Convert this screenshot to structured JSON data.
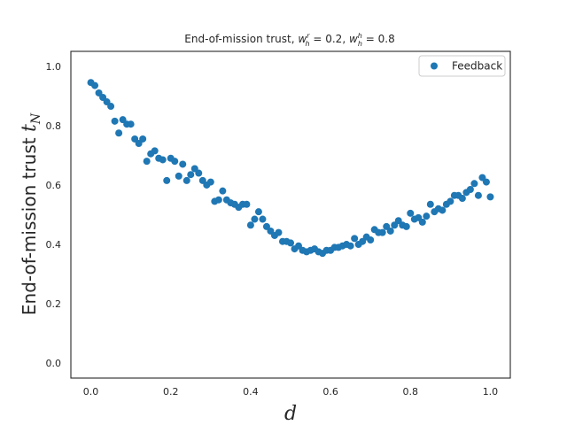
{
  "chart_data": {
    "type": "scatter",
    "title": "End-of-mission trust, w_h^r = 0.2, w_h^h = 0.8",
    "title_parts": {
      "prefix": "End-of-mission trust, ",
      "w1_base": "w",
      "w1_sup": "r",
      "w1_sub": "h",
      "w1_value": " = 0.2, ",
      "w2_base": "w",
      "w2_sup": "h",
      "w2_sub": "h",
      "w2_value": " = 0.8"
    },
    "xlabel": "d",
    "ylabel": "End-of-mission trust t_N",
    "ylabel_parts": {
      "text": "End-of-mission trust ",
      "var": "t",
      "sub": "N"
    },
    "xlim": [
      -0.05,
      1.05
    ],
    "ylim": [
      -0.05,
      1.05
    ],
    "xticks": [
      0.0,
      0.2,
      0.4,
      0.6,
      0.8,
      1.0
    ],
    "xtick_labels": [
      "0.0",
      "0.2",
      "0.4",
      "0.6",
      "0.8",
      "1.0"
    ],
    "yticks": [
      0.0,
      0.2,
      0.4,
      0.6,
      0.8,
      1.0
    ],
    "ytick_labels": [
      "0.0",
      "0.2",
      "0.4",
      "0.6",
      "0.8",
      "1.0"
    ],
    "grid": false,
    "legend_position": "top-right",
    "series": [
      {
        "name": "Feedback",
        "color": "#1f77b4",
        "x": [
          0.0,
          0.01,
          0.02,
          0.03,
          0.04,
          0.05,
          0.06,
          0.07,
          0.08,
          0.09,
          0.1,
          0.11,
          0.12,
          0.13,
          0.14,
          0.15,
          0.16,
          0.17,
          0.18,
          0.19,
          0.2,
          0.21,
          0.22,
          0.23,
          0.24,
          0.25,
          0.26,
          0.27,
          0.28,
          0.29,
          0.3,
          0.31,
          0.32,
          0.33,
          0.34,
          0.35,
          0.36,
          0.37,
          0.38,
          0.39,
          0.4,
          0.41,
          0.42,
          0.43,
          0.44,
          0.45,
          0.46,
          0.47,
          0.48,
          0.49,
          0.5,
          0.51,
          0.52,
          0.53,
          0.54,
          0.55,
          0.56,
          0.57,
          0.58,
          0.59,
          0.6,
          0.61,
          0.62,
          0.63,
          0.64,
          0.65,
          0.66,
          0.67,
          0.68,
          0.69,
          0.7,
          0.71,
          0.72,
          0.73,
          0.74,
          0.75,
          0.76,
          0.77,
          0.78,
          0.79,
          0.8,
          0.81,
          0.82,
          0.83,
          0.84,
          0.85,
          0.86,
          0.87,
          0.88,
          0.89,
          0.9,
          0.91,
          0.92,
          0.93,
          0.94,
          0.95,
          0.96,
          0.97,
          0.98,
          0.99,
          1.0
        ],
        "y": [
          0.945,
          0.935,
          0.91,
          0.895,
          0.88,
          0.865,
          0.815,
          0.775,
          0.82,
          0.805,
          0.805,
          0.755,
          0.74,
          0.755,
          0.68,
          0.705,
          0.715,
          0.69,
          0.685,
          0.615,
          0.69,
          0.68,
          0.63,
          0.67,
          0.615,
          0.635,
          0.655,
          0.64,
          0.615,
          0.6,
          0.61,
          0.545,
          0.55,
          0.58,
          0.55,
          0.54,
          0.535,
          0.525,
          0.535,
          0.535,
          0.465,
          0.485,
          0.51,
          0.485,
          0.46,
          0.445,
          0.43,
          0.44,
          0.41,
          0.41,
          0.405,
          0.385,
          0.395,
          0.38,
          0.375,
          0.38,
          0.385,
          0.375,
          0.37,
          0.38,
          0.38,
          0.39,
          0.39,
          0.395,
          0.4,
          0.395,
          0.42,
          0.4,
          0.41,
          0.425,
          0.415,
          0.45,
          0.44,
          0.44,
          0.46,
          0.445,
          0.465,
          0.48,
          0.465,
          0.46,
          0.505,
          0.485,
          0.49,
          0.475,
          0.495,
          0.535,
          0.51,
          0.52,
          0.515,
          0.535,
          0.545,
          0.565,
          0.565,
          0.555,
          0.575,
          0.585,
          0.605,
          0.565,
          0.625,
          0.61,
          0.56
        ]
      }
    ]
  }
}
